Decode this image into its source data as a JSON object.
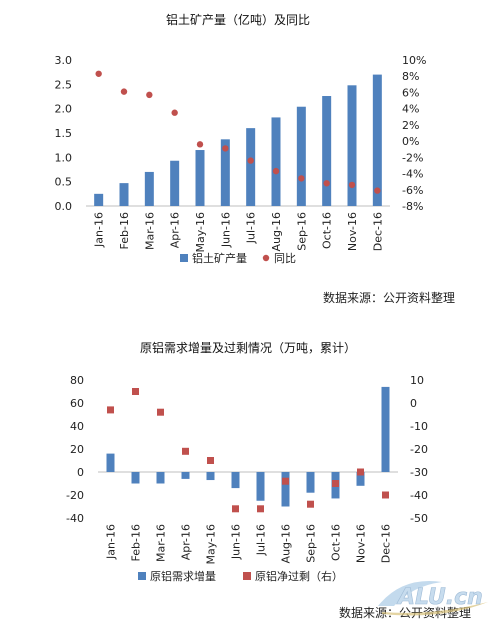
{
  "chart_data": [
    {
      "type": "bar",
      "title": "铝土矿产量（亿吨）及同比",
      "categories": [
        "Jan-16",
        "Feb-16",
        "Mar-16",
        "Apr-16",
        "May-16",
        "Jun-16",
        "Jul-16",
        "Aug-16",
        "Sep-16",
        "Oct-16",
        "Nov-16",
        "Dec-16"
      ],
      "series": [
        {
          "name": "铝土矿产量",
          "type": "bar",
          "axis": "left",
          "color": "#4F81BD",
          "values": [
            0.25,
            0.47,
            0.7,
            0.93,
            1.15,
            1.37,
            1.6,
            1.82,
            2.04,
            2.26,
            2.48,
            2.7
          ]
        },
        {
          "name": "同比",
          "type": "scatter",
          "axis": "right",
          "unit": "%",
          "color": "#C0504D",
          "values": [
            8.3,
            6.1,
            5.7,
            3.5,
            -0.4,
            -0.9,
            -2.4,
            -3.7,
            -4.6,
            -5.2,
            -5.4,
            -6.1
          ]
        }
      ],
      "y_left": {
        "min": 0,
        "max": 3.0,
        "ticks": [
          "0.0",
          "0.5",
          "1.0",
          "1.5",
          "2.0",
          "2.5",
          "3.0"
        ]
      },
      "y_right": {
        "min": -8,
        "max": 10,
        "ticks": [
          "-8%",
          "-6%",
          "-4%",
          "-2%",
          "0%",
          "2%",
          "4%",
          "6%",
          "8%",
          "10%"
        ]
      },
      "legend": [
        "铝土矿产量",
        "同比"
      ],
      "legend_position": "bottom",
      "grid": false,
      "source": "数据来源：公开资料整理"
    },
    {
      "type": "bar",
      "title": "原铝需求增量及过剩情况（万吨，累计）",
      "categories": [
        "Jan-16",
        "Feb-16",
        "Mar-16",
        "Apr-16",
        "May-16",
        "Jun-16",
        "Jul-16",
        "Aug-16",
        "Sep-16",
        "Oct-16",
        "Nov-16",
        "Dec-16"
      ],
      "series": [
        {
          "name": "原铝需求增量",
          "type": "bar",
          "axis": "left",
          "color": "#4F81BD",
          "values": [
            16,
            -10,
            -10,
            -6,
            -7,
            -14,
            -25,
            -30,
            -18,
            -23,
            -12,
            74
          ]
        },
        {
          "name": "原铝净过剩（右）",
          "type": "scatter",
          "axis": "right",
          "color": "#C0504D",
          "values": [
            -3,
            5,
            -4,
            -21,
            -25,
            -46,
            -46,
            -34,
            -44,
            -35,
            -30,
            -40
          ]
        }
      ],
      "y_left": {
        "min": -40,
        "max": 80,
        "ticks": [
          "-40",
          "-20",
          "0",
          "20",
          "40",
          "60",
          "80"
        ]
      },
      "y_right": {
        "min": -50,
        "max": 10,
        "ticks": [
          "-50",
          "-40",
          "-30",
          "-20",
          "-10",
          "0",
          "10"
        ]
      },
      "legend": [
        "原铝需求增量",
        "原铝净过剩（右）"
      ],
      "legend_position": "bottom",
      "grid": false,
      "source": "数据来源：公开资料整理"
    }
  ],
  "watermark": {
    "text": "ALU.cn"
  }
}
